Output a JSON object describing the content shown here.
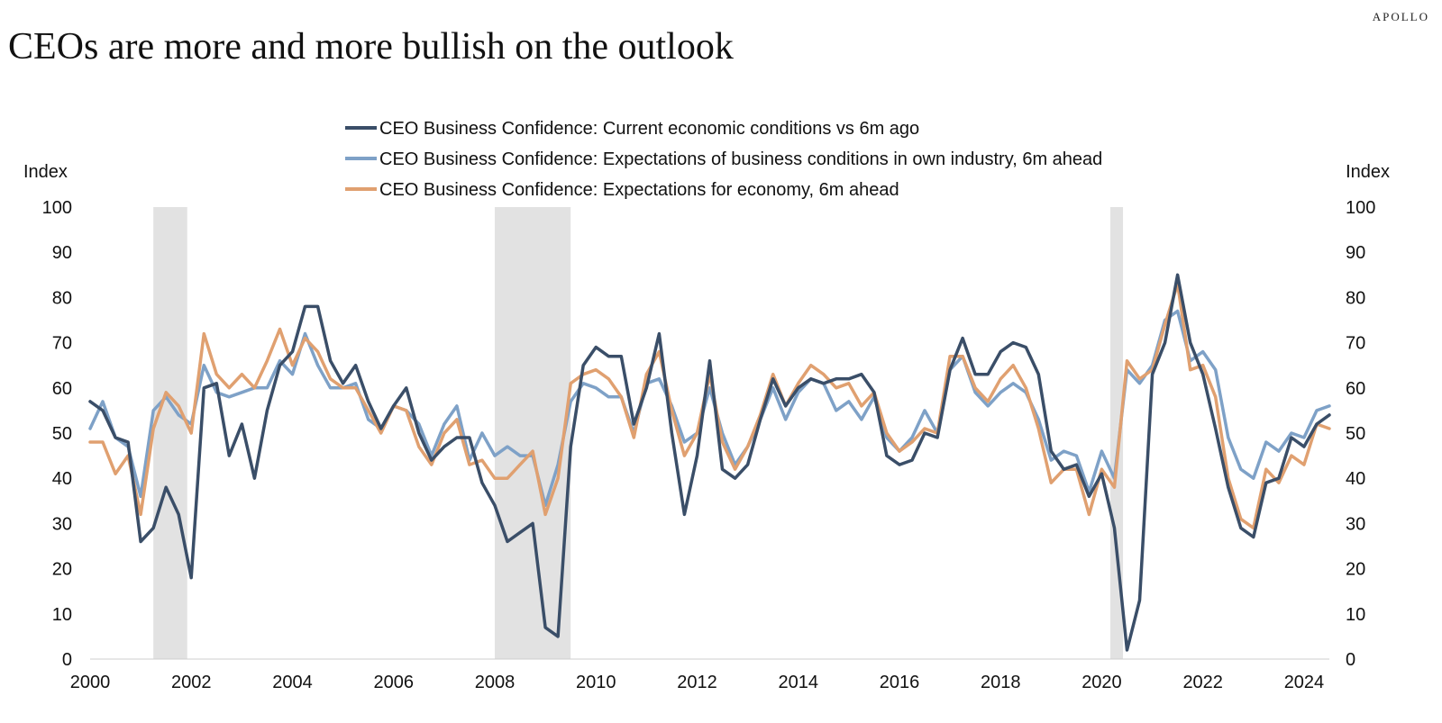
{
  "header": {
    "brand": "APOLLO",
    "title": "CEOs are more and more bullish on the outlook"
  },
  "chart_data": {
    "type": "line",
    "ylabel_left": "Index",
    "ylabel_right": "Index",
    "ylim": [
      0,
      100
    ],
    "yticks": [
      0,
      10,
      20,
      30,
      40,
      50,
      60,
      70,
      80,
      90,
      100
    ],
    "xlim": [
      2000,
      2024.5
    ],
    "xticks": [
      "2000",
      "2002",
      "2004",
      "2006",
      "2008",
      "2010",
      "2012",
      "2014",
      "2016",
      "2018",
      "2020",
      "2022",
      "2024"
    ],
    "grid": false,
    "legend_position": "top-center",
    "recessions": [
      [
        2001.25,
        2001.92
      ],
      [
        2008.0,
        2009.5
      ],
      [
        2020.17,
        2020.42
      ]
    ],
    "recession_color": "#e2e2e2",
    "x": [
      2000.0,
      2000.25,
      2000.5,
      2000.75,
      2001.0,
      2001.25,
      2001.5,
      2001.75,
      2002.0,
      2002.25,
      2002.5,
      2002.75,
      2003.0,
      2003.25,
      2003.5,
      2003.75,
      2004.0,
      2004.25,
      2004.5,
      2004.75,
      2005.0,
      2005.25,
      2005.5,
      2005.75,
      2006.0,
      2006.25,
      2006.5,
      2006.75,
      2007.0,
      2007.25,
      2007.5,
      2007.75,
      2008.0,
      2008.25,
      2008.5,
      2008.75,
      2009.0,
      2009.25,
      2009.5,
      2009.75,
      2010.0,
      2010.25,
      2010.5,
      2010.75,
      2011.0,
      2011.25,
      2011.5,
      2011.75,
      2012.0,
      2012.25,
      2012.5,
      2012.75,
      2013.0,
      2013.25,
      2013.5,
      2013.75,
      2014.0,
      2014.25,
      2014.5,
      2014.75,
      2015.0,
      2015.25,
      2015.5,
      2015.75,
      2016.0,
      2016.25,
      2016.5,
      2016.75,
      2017.0,
      2017.25,
      2017.5,
      2017.75,
      2018.0,
      2018.25,
      2018.5,
      2018.75,
      2019.0,
      2019.25,
      2019.5,
      2019.75,
      2020.0,
      2020.25,
      2020.5,
      2020.75,
      2021.0,
      2021.25,
      2021.5,
      2021.75,
      2022.0,
      2022.25,
      2022.5,
      2022.75,
      2023.0,
      2023.25,
      2023.5,
      2023.75,
      2024.0,
      2024.25,
      2024.5
    ],
    "series": [
      {
        "name": "CEO Business Confidence: Current economic conditions vs 6m ago",
        "color": "#3a4e68",
        "values": [
          57,
          55,
          49,
          48,
          26,
          29,
          38,
          32,
          18,
          60,
          61,
          45,
          52,
          40,
          55,
          65,
          68,
          78,
          78,
          66,
          61,
          65,
          57,
          51,
          56,
          60,
          50,
          44,
          47,
          49,
          49,
          39,
          34,
          26,
          28,
          30,
          7,
          5,
          47,
          65,
          69,
          67,
          67,
          52,
          60,
          72,
          50,
          32,
          45,
          66,
          42,
          40,
          43,
          53,
          62,
          56,
          60,
          62,
          61,
          62,
          62,
          63,
          59,
          45,
          43,
          44,
          50,
          49,
          64,
          71,
          63,
          63,
          68,
          70,
          69,
          63,
          46,
          42,
          43,
          36,
          41,
          29,
          2,
          13,
          63,
          70,
          85,
          70,
          63,
          51,
          38,
          29,
          27,
          39,
          40,
          49,
          47,
          52,
          54
        ]
      },
      {
        "name": "CEO Business Confidence: Expectations of business conditions in own industry, 6m ahead",
        "color": "#7ea1c7",
        "values": [
          51,
          57,
          49,
          47,
          36,
          55,
          58,
          54,
          52,
          65,
          59,
          58,
          59,
          60,
          60,
          66,
          63,
          72,
          65,
          60,
          60,
          61,
          53,
          51,
          56,
          55,
          52,
          45,
          52,
          56,
          44,
          50,
          45,
          47,
          45,
          45,
          34,
          43,
          57,
          61,
          60,
          58,
          58,
          50,
          61,
          62,
          56,
          48,
          50,
          60,
          50,
          43,
          47,
          53,
          60,
          53,
          59,
          62,
          61,
          55,
          57,
          53,
          58,
          49,
          46,
          49,
          55,
          50,
          64,
          67,
          59,
          56,
          59,
          61,
          59,
          53,
          44,
          46,
          45,
          37,
          46,
          40,
          64,
          61,
          65,
          75,
          77,
          66,
          68,
          64,
          49,
          42,
          40,
          48,
          46,
          50,
          49,
          55,
          56
        ]
      },
      {
        "name": "CEO Business Confidence: Expectations for economy, 6m ahead",
        "color": "#e0a070",
        "values": [
          48,
          48,
          41,
          45,
          32,
          51,
          59,
          56,
          50,
          72,
          63,
          60,
          63,
          60,
          66,
          73,
          65,
          71,
          68,
          62,
          60,
          60,
          55,
          50,
          56,
          55,
          47,
          43,
          50,
          53,
          43,
          44,
          40,
          40,
          43,
          46,
          32,
          40,
          61,
          63,
          64,
          62,
          58,
          49,
          63,
          68,
          55,
          45,
          50,
          63,
          48,
          42,
          47,
          54,
          63,
          56,
          61,
          65,
          63,
          60,
          61,
          56,
          59,
          50,
          46,
          48,
          51,
          50,
          67,
          67,
          60,
          57,
          62,
          65,
          60,
          51,
          39,
          42,
          42,
          32,
          42,
          38,
          66,
          62,
          64,
          74,
          83,
          64,
          65,
          58,
          40,
          31,
          29,
          42,
          39,
          45,
          43,
          52,
          51
        ]
      }
    ]
  }
}
